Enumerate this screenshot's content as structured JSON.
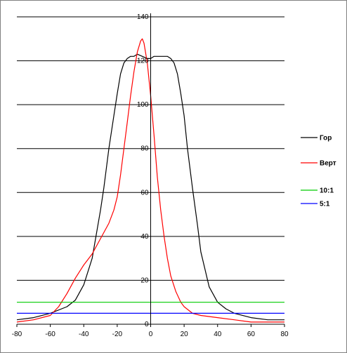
{
  "chart_data": {
    "type": "line",
    "title": "",
    "xlabel": "",
    "ylabel": "",
    "xlim": [
      -80,
      80
    ],
    "ylim": [
      0,
      140
    ],
    "grid": "horizontal",
    "legend_position": "right",
    "x_ticks": [
      "-80",
      "-60",
      "-40",
      "-20",
      "0",
      "20",
      "40",
      "60",
      "80"
    ],
    "y_ticks": [
      "0",
      "20",
      "40",
      "60",
      "80",
      "100",
      "120",
      "140"
    ],
    "series": [
      {
        "name": "Гор",
        "color": "#000000",
        "x": [
          -80,
          -70,
          -60,
          -50,
          -45,
          -40,
          -35,
          -30,
          -28,
          -25,
          -22,
          -20,
          -18,
          -16,
          -14,
          -12,
          -10,
          -8,
          -5,
          -2,
          0,
          2,
          5,
          8,
          10,
          12,
          14,
          16,
          18,
          20,
          22,
          25,
          28,
          30,
          35,
          40,
          45,
          50,
          60,
          70,
          80
        ],
        "y": [
          2,
          3,
          5,
          8,
          11,
          18,
          30,
          52,
          62,
          80,
          95,
          105,
          114,
          119,
          121,
          122,
          122,
          123,
          122,
          121,
          121,
          122,
          122,
          122,
          122,
          121,
          119,
          114,
          105,
          95,
          80,
          62,
          45,
          33,
          17,
          10,
          7,
          5,
          3,
          2,
          2
        ]
      },
      {
        "name": "Верт",
        "color": "#ff0000",
        "x": [
          -80,
          -70,
          -60,
          -55,
          -50,
          -45,
          -40,
          -35,
          -30,
          -25,
          -22,
          -20,
          -18,
          -16,
          -14,
          -12,
          -10,
          -8,
          -6,
          -5,
          -4,
          -2,
          0,
          2,
          4,
          6,
          8,
          10,
          12,
          15,
          18,
          20,
          25,
          30,
          40,
          50,
          60,
          70,
          80
        ],
        "y": [
          1,
          2,
          4,
          8,
          14,
          21,
          27,
          32,
          39,
          46,
          52,
          58,
          68,
          80,
          92,
          104,
          115,
          124,
          129,
          130,
          128,
          119,
          104,
          86,
          67,
          52,
          40,
          30,
          22,
          15,
          10,
          8,
          5,
          4,
          3,
          2,
          1,
          1,
          1
        ]
      },
      {
        "name": "10:1",
        "color": "#00cc00",
        "x": [
          -80,
          80
        ],
        "y": [
          10,
          10
        ]
      },
      {
        "name": "5:1",
        "color": "#0000ff",
        "x": [
          -80,
          80
        ],
        "y": [
          5,
          5
        ]
      }
    ]
  }
}
